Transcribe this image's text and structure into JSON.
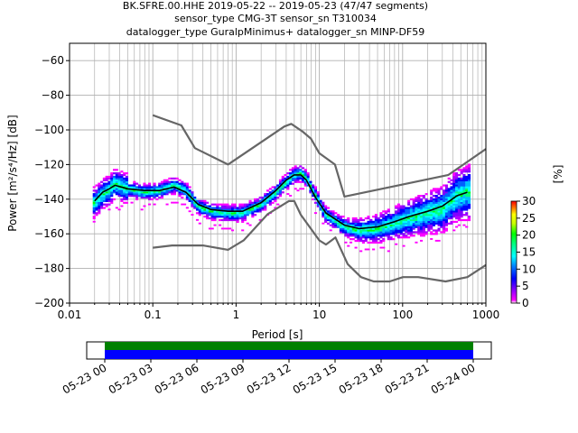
{
  "title_lines": [
    "BK.SFRE.00.HHE   2019-05-22 -- 2019-05-23  (47/47 segments)",
    "sensor_type CMG-3T sensor_sn T310034",
    "datalogger_type GuralpMinimus+ datalogger_sn MINP-DF59"
  ],
  "chart_data": {
    "type": "heatmap",
    "xlabel": "Period [s]",
    "ylabel": "Power [m²/s⁴/Hz] [dB]",
    "xscale": "log",
    "xlim": [
      0.01,
      1000
    ],
    "ylim": [
      -200,
      -50
    ],
    "x_ticks": [
      {
        "v": 0.01,
        "label": "0.01"
      },
      {
        "v": 0.1,
        "label": "0.1"
      },
      {
        "v": 1,
        "label": "1"
      },
      {
        "v": 10,
        "label": "10"
      },
      {
        "v": 100,
        "label": "100"
      },
      {
        "v": 1000,
        "label": "1000"
      }
    ],
    "y_ticks": [
      {
        "v": -200,
        "label": "−200"
      },
      {
        "v": -180,
        "label": "−180"
      },
      {
        "v": -160,
        "label": "−160"
      },
      {
        "v": -140,
        "label": "−140"
      },
      {
        "v": -120,
        "label": "−120"
      },
      {
        "v": -100,
        "label": "−100"
      },
      {
        "v": -80,
        "label": "−80"
      },
      {
        "v": -60,
        "label": "−60"
      }
    ],
    "grid": true,
    "colorbar": {
      "label": "[%]",
      "min": 0,
      "max": 30,
      "ticks": [
        {
          "v": 0,
          "label": "0"
        },
        {
          "v": 5,
          "label": "5"
        },
        {
          "v": 10,
          "label": "10"
        },
        {
          "v": 15,
          "label": "15"
        },
        {
          "v": 20,
          "label": "20"
        },
        {
          "v": 25,
          "label": "25"
        },
        {
          "v": 30,
          "label": "30"
        }
      ]
    },
    "noise_model_high": {
      "period": [
        0.1,
        0.22,
        0.32,
        0.8,
        3.8,
        4.6,
        6.3,
        7.9,
        10,
        15.4,
        20,
        354.8,
        1000
      ],
      "db": [
        -91.5,
        -97.4,
        -110.5,
        -120,
        -98,
        -96.5,
        -101,
        -105,
        -113.5,
        -120,
        -138.5,
        -126,
        -111
      ]
    },
    "noise_model_low": {
      "period": [
        0.1,
        0.17,
        0.4,
        0.8,
        1.24,
        2.4,
        4.3,
        5,
        6,
        10,
        12,
        15.6,
        21.9,
        31.6,
        45,
        70,
        101,
        154,
        328,
        600,
        1000
      ],
      "db": [
        -168,
        -166.7,
        -166.7,
        -169.2,
        -163.7,
        -148.6,
        -141.1,
        -141.1,
        -149,
        -163.8,
        -166.2,
        -162.1,
        -177.5,
        -185,
        -187.5,
        -187.5,
        -185,
        -185,
        -187.5,
        -185,
        -178
      ]
    },
    "mode_curve": {
      "period": [
        0.02,
        0.025,
        0.03,
        0.035,
        0.05,
        0.08,
        0.12,
        0.18,
        0.25,
        0.35,
        0.5,
        0.8,
        1.2,
        2,
        3,
        4,
        5,
        6,
        7,
        9,
        12,
        20,
        30,
        50,
        80,
        120,
        200,
        300,
        450,
        600
      ],
      "db": [
        -142,
        -137,
        -135,
        -131,
        -134,
        -136,
        -135,
        -132,
        -135,
        -144,
        -147,
        -148,
        -148,
        -143,
        -136,
        -130,
        -126,
        -125,
        -128,
        -138,
        -149,
        -156,
        -158,
        -157,
        -154,
        -151,
        -148,
        -146,
        -138,
        -136
      ]
    },
    "mean_curve": {
      "period": [
        0.02,
        0.025,
        0.03,
        0.035,
        0.05,
        0.08,
        0.12,
        0.18,
        0.25,
        0.35,
        0.5,
        0.8,
        1.2,
        2,
        3,
        4,
        5,
        6,
        7,
        9,
        12,
        20,
        30,
        50,
        80,
        120,
        200,
        300,
        450,
        600
      ],
      "db": [
        -141,
        -136,
        -134,
        -132,
        -134,
        -135,
        -135,
        -133,
        -136,
        -143,
        -146,
        -147,
        -147,
        -142,
        -135,
        -129,
        -126,
        -126,
        -129,
        -139,
        -148,
        -155,
        -157,
        -156,
        -153,
        -150,
        -147,
        -144,
        -138,
        -136
      ]
    }
  },
  "time_axis": {
    "ticks": [
      "05-23 00",
      "05-23 03",
      "05-23 06",
      "05-23 09",
      "05-23 12",
      "05-23 15",
      "05-23 18",
      "05-23 21",
      "05-24 00"
    ],
    "data_coverage_color": "#008000",
    "psd_coverage_color": "#0000ff"
  }
}
